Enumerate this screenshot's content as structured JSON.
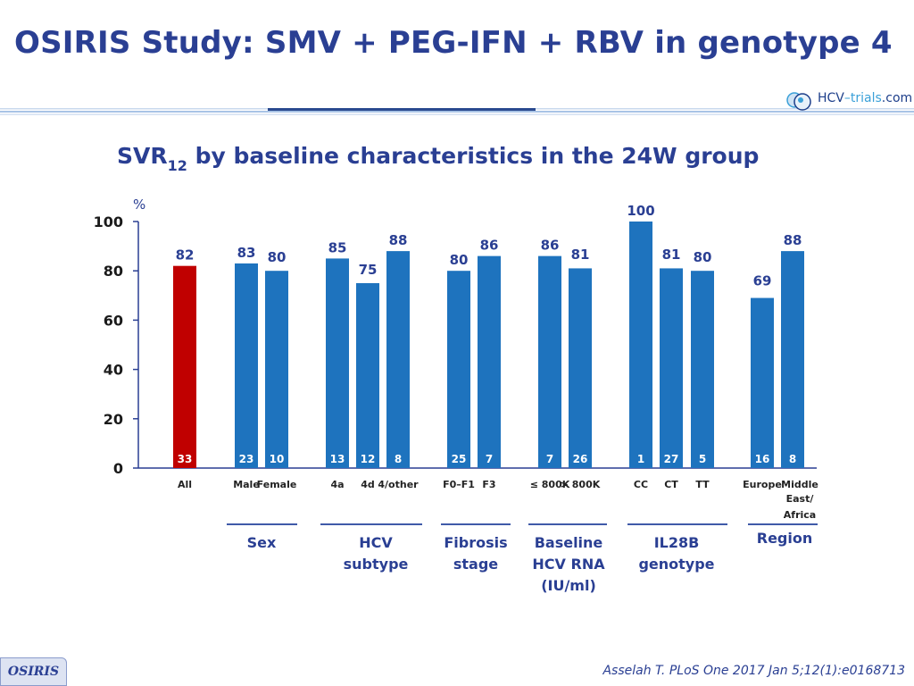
{
  "header": {
    "title": "OSIRIS Study: SMV + PEG-IFN + RBV in genotype 4",
    "logo_text_main": "HCV",
    "logo_text_dash": "–",
    "logo_text_trials": "trials",
    "logo_text_com": ".com"
  },
  "subtitle": {
    "prefix": "SVR",
    "subscript": "12",
    "suffix": " by baseline characteristics in the 24W group"
  },
  "chart_data": {
    "type": "bar",
    "title": "SVR12 by baseline characteristics in the 24W group",
    "ylabel": "%",
    "ylim": [
      0,
      100
    ],
    "yticks": [
      0,
      20,
      40,
      60,
      80,
      100
    ],
    "grid": false,
    "bars": [
      {
        "label": "All",
        "value": 82,
        "n": "33",
        "color": "#c00000",
        "group": "all"
      },
      {
        "label": "Male",
        "value": 83,
        "n": "23",
        "color": "#1e73be",
        "group": "sex"
      },
      {
        "label": "Female",
        "value": 80,
        "n": "10",
        "color": "#1e73be",
        "group": "sex"
      },
      {
        "label": "4a",
        "value": 85,
        "n": "13",
        "color": "#1e73be",
        "group": "hcv-subtype"
      },
      {
        "label": "4d",
        "value": 75,
        "n": "12",
        "color": "#1e73be",
        "group": "hcv-subtype"
      },
      {
        "label": "4/other",
        "value": 88,
        "n": "8",
        "color": "#1e73be",
        "group": "hcv-subtype"
      },
      {
        "label": "F0–F1",
        "value": 80,
        "n": "25",
        "color": "#1e73be",
        "group": "fibrosis"
      },
      {
        "label": "F3",
        "value": 86,
        "n": "7",
        "color": "#1e73be",
        "group": "fibrosis"
      },
      {
        "label": "≤ 800K",
        "value": 86,
        "n": "7",
        "color": "#1e73be",
        "group": "hcv-rna"
      },
      {
        "label": "> 800K",
        "value": 81,
        "n": "26",
        "color": "#1e73be",
        "group": "hcv-rna"
      },
      {
        "label": "CC",
        "value": 100,
        "n": "1",
        "color": "#1e73be",
        "group": "il28b"
      },
      {
        "label": "CT",
        "value": 81,
        "n": "27",
        "color": "#1e73be",
        "group": "il28b"
      },
      {
        "label": "TT",
        "value": 80,
        "n": "5",
        "color": "#1e73be",
        "group": "il28b"
      },
      {
        "label": "Europe",
        "value": 69,
        "n": "16",
        "color": "#1e73be",
        "group": "region"
      },
      {
        "label": "Middle East/ Africa",
        "value": 88,
        "n": "8",
        "color": "#1e73be",
        "group": "region"
      }
    ],
    "groups": [
      {
        "key": "sex",
        "label": "Sex"
      },
      {
        "key": "hcv-subtype",
        "label": "HCV\nsubtype"
      },
      {
        "key": "fibrosis",
        "label": "Fibrosis\nstage"
      },
      {
        "key": "hcv-rna",
        "label": "Baseline\nHCV RNA\n(IU/ml)"
      },
      {
        "key": "il28b",
        "label": "IL28B\ngenotype"
      },
      {
        "key": "region",
        "label": "Region"
      }
    ]
  },
  "footer": {
    "badge": "OSIRIS",
    "citation": "Asselah T. PLoS One 2017 Jan 5;12(1):e0168713"
  },
  "colors": {
    "title": "#2a3f93",
    "bar_primary": "#1e73be",
    "bar_highlight": "#c00000",
    "axis": "#2a3f93"
  }
}
